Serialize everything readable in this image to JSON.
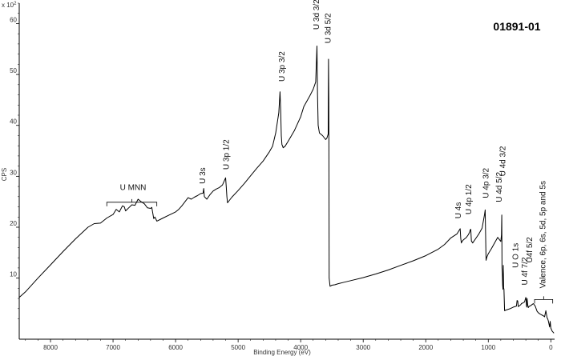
{
  "chart_data": {
    "type": "line",
    "title": "01891-01",
    "xlabel": "Binding Energy (eV)",
    "ylabel": "CPS",
    "y_multiplier_label": "x 10",
    "y_multiplier_exponent": "2",
    "xlim": [
      8500,
      -60
    ],
    "ylim": [
      -2,
      64
    ],
    "x_reversed": true,
    "grid": false,
    "legend": "none",
    "x_ticks": [
      8000,
      7000,
      6000,
      5000,
      4000,
      3000,
      2000,
      1000,
      0
    ],
    "x_tick_labels": [
      "8000",
      "7000",
      "6000",
      "5000",
      "4000",
      "3000",
      "2000",
      "1000",
      "0"
    ],
    "y_ticks": [
      10,
      20,
      30,
      40,
      50,
      60
    ],
    "y_tick_labels": [
      "10",
      "20",
      "30",
      "40",
      "50",
      "60"
    ],
    "series": [
      {
        "color": "#000000",
        "x": [
          8500,
          8400,
          8200,
          8000,
          7800,
          7600,
          7400,
          7300,
          7200,
          7100,
          7000,
          6950,
          6900,
          6850,
          6820,
          6800,
          6750,
          6700,
          6650,
          6600,
          6550,
          6500,
          6450,
          6400,
          6380,
          6350,
          6330,
          6300,
          6250,
          6200,
          6100,
          6000,
          5950,
          5900,
          5850,
          5800,
          5750,
          5700,
          5650,
          5600,
          5560,
          5550,
          5540,
          5500,
          5450,
          5400,
          5350,
          5300,
          5250,
          5200,
          5190,
          5180,
          5170,
          5150,
          5100,
          5000,
          4900,
          4800,
          4700,
          4600,
          4500,
          4450,
          4400,
          4350,
          4330,
          4320,
          4310,
          4300,
          4290,
          4280,
          4250,
          4200,
          4100,
          4000,
          3950,
          3900,
          3850,
          3800,
          3760,
          3740,
          3730,
          3720,
          3700,
          3650,
          3600,
          3580,
          3560,
          3555,
          3550,
          3545,
          3530,
          3500,
          3450,
          3400,
          3300,
          3200,
          3000,
          2800,
          2600,
          2400,
          2200,
          2000,
          1800,
          1700,
          1600,
          1500,
          1450,
          1440,
          1430,
          1420,
          1400,
          1350,
          1320,
          1300,
          1290,
          1280,
          1270,
          1250,
          1200,
          1150,
          1100,
          1060,
          1050,
          1040,
          1035,
          1030,
          1020,
          1000,
          950,
          900,
          850,
          800,
          790,
          785,
          780,
          775,
          770,
          765,
          760,
          755,
          750,
          740,
          735,
          730,
          720,
          700,
          650,
          600,
          550,
          540,
          530,
          520,
          510,
          500,
          490,
          480,
          470,
          450,
          420,
          400,
          395,
          390,
          385,
          380,
          370,
          360,
          350,
          340,
          320,
          300,
          280,
          250,
          220,
          200,
          180,
          150,
          120,
          100,
          80,
          60,
          50,
          40,
          30,
          20,
          10,
          0,
          -20,
          -50
        ],
        "y": [
          6.2,
          7.3,
          10.0,
          12.6,
          15.2,
          17.7,
          20.0,
          20.7,
          20.8,
          21.8,
          22.5,
          23.5,
          23.0,
          24.2,
          24.0,
          23.2,
          23.8,
          24.4,
          24.3,
          25.5,
          25.0,
          24.6,
          23.8,
          23.7,
          23.9,
          21.7,
          22.0,
          21.2,
          21.5,
          21.8,
          22.4,
          23.0,
          23.5,
          24.2,
          25.0,
          25.8,
          25.5,
          25.9,
          26.2,
          26.6,
          26.7,
          27.6,
          26.0,
          25.5,
          26.4,
          27.1,
          27.5,
          27.8,
          28.3,
          29.7,
          28.0,
          26.0,
          24.8,
          25.1,
          25.9,
          27.2,
          28.6,
          30.1,
          31.6,
          33.0,
          34.8,
          35.9,
          38.5,
          42.5,
          46.6,
          43.0,
          38.0,
          36.2,
          36.0,
          35.6,
          35.9,
          36.9,
          39.0,
          41.7,
          43.7,
          44.8,
          45.9,
          47.1,
          48.5,
          55.6,
          46.0,
          40.0,
          38.5,
          38.0,
          37.2,
          37.5,
          38.3,
          53.0,
          45.0,
          10.0,
          8.4,
          8.6,
          8.7,
          8.9,
          9.2,
          9.5,
          10.1,
          10.8,
          11.6,
          12.5,
          13.4,
          14.4,
          15.7,
          16.6,
          17.9,
          18.7,
          19.7,
          17.8,
          16.9,
          17.2,
          17.5,
          18.0,
          18.5,
          19.0,
          19.4,
          19.6,
          17.3,
          16.9,
          17.8,
          18.7,
          19.8,
          22.5,
          23.4,
          16.0,
          13.5,
          13.8,
          14.2,
          14.8,
          15.8,
          16.9,
          18.0,
          17.2,
          18.5,
          22.4,
          12.0,
          11.0,
          8.6,
          7.8,
          12.5,
          8.0,
          7.9,
          3.6,
          3.6,
          3.7,
          3.7,
          3.8,
          4.0,
          4.3,
          4.5,
          5.6,
          5.5,
          4.4,
          4.5,
          4.6,
          4.7,
          4.8,
          5.0,
          5.1,
          5.3,
          6.2,
          5.8,
          4.6,
          4.3,
          6.0,
          4.8,
          4.2,
          4.4,
          4.5,
          4.6,
          4.8,
          5.0,
          4.5,
          3.5,
          3.2,
          3.0,
          2.8,
          2.6,
          2.4,
          3.6,
          2.2,
          2.0,
          1.6,
          1.0,
          0.4,
          1.5,
          0.2,
          -0.4,
          -0.8
        ]
      }
    ]
  },
  "annotations": [
    {
      "text": "U MNN",
      "x": 6680,
      "y": 27.3
    },
    {
      "text": "U 3s",
      "x": 5530,
      "y": 28.5
    },
    {
      "text": "U 3p 1/2",
      "x": 5150,
      "y": 31.3
    },
    {
      "text": "U 3p 3/2",
      "x": 4260,
      "y": 48.6
    },
    {
      "text": "U 3d 3/2",
      "x": 3710,
      "y": 58.8
    },
    {
      "text": "U 3d 5/2",
      "x": 3520,
      "y": 56.1
    },
    {
      "text": "U 4s",
      "x": 1440,
      "y": 21.7
    },
    {
      "text": "U 4p 1/2",
      "x": 1270,
      "y": 22.5
    },
    {
      "text": "U 4p 3/2",
      "x": 1000,
      "y": 25.7
    },
    {
      "text": "U 4d 5/2",
      "x": 785,
      "y": 24.9
    },
    {
      "text": "U 4d 3/2",
      "x": 730,
      "y": 30.0
    },
    {
      "text": "U O 1s",
      "x": 520,
      "y": 12.0
    },
    {
      "text": "U 4f 7/2",
      "x": 375,
      "y": 8.6
    },
    {
      "text": "U4f 5/2",
      "x": 300,
      "y": 13.0
    },
    {
      "text": "Valence, 6p, 6s, 5d, 5p and 5s",
      "x": 85,
      "y": 8.0
    }
  ]
}
